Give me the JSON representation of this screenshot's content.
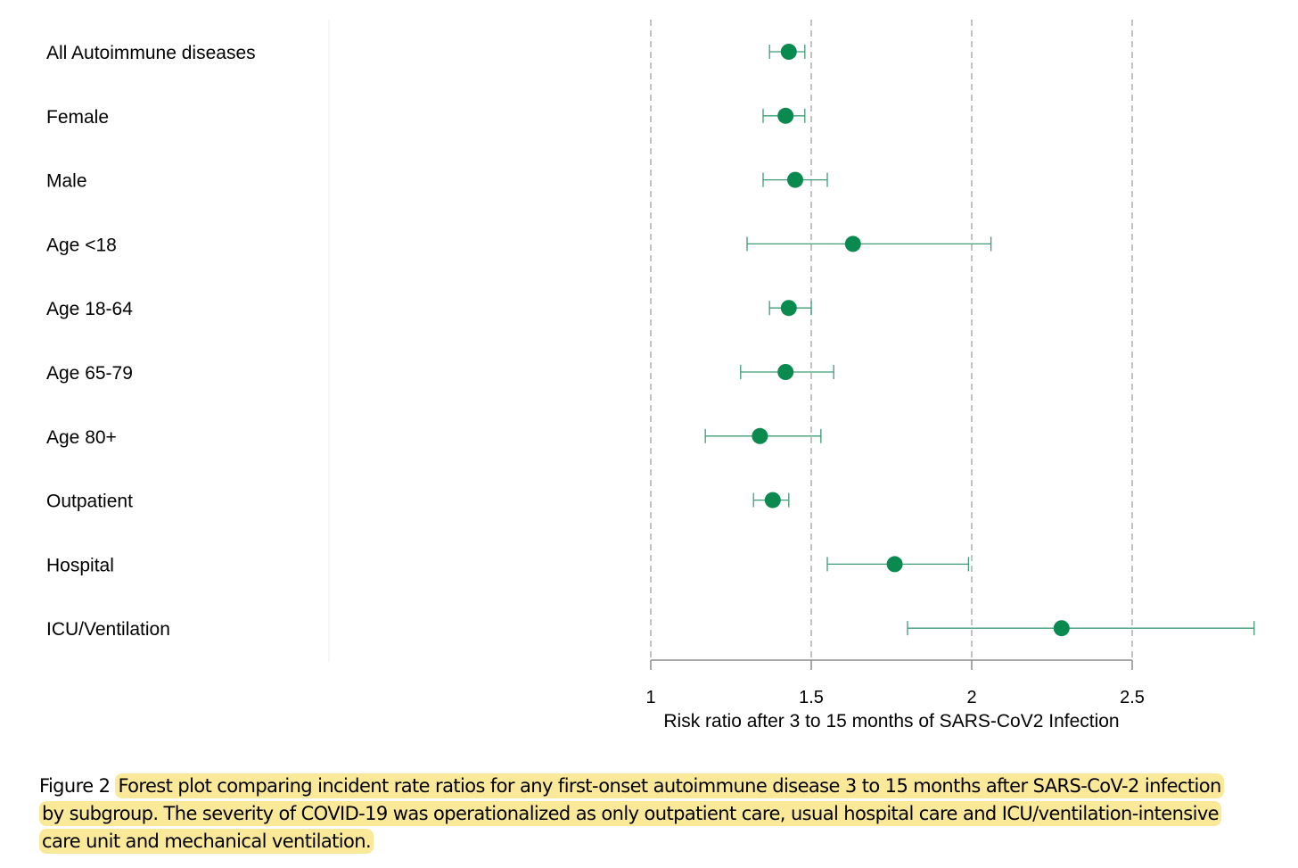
{
  "chart_data": {
    "type": "forest",
    "xlabel": "Risk ratio after 3 to 15 months of SARS-CoV2 Infection",
    "xlim": [
      1,
      2.5
    ],
    "xticks": [
      1,
      1.5,
      2,
      2.5
    ],
    "tick_labels": [
      "1",
      "1.5",
      "2",
      "2.5"
    ],
    "grid": "vertical dashed at ticks",
    "rows": [
      {
        "label": "All Autoimmune diseases",
        "estimate": 1.43,
        "lower": 1.37,
        "upper": 1.48
      },
      {
        "label": "Female",
        "estimate": 1.42,
        "lower": 1.35,
        "upper": 1.48
      },
      {
        "label": "Male",
        "estimate": 1.45,
        "lower": 1.35,
        "upper": 1.55
      },
      {
        "label": "Age <18",
        "estimate": 1.63,
        "lower": 1.3,
        "upper": 2.06
      },
      {
        "label": "Age 18-64",
        "estimate": 1.43,
        "lower": 1.37,
        "upper": 1.5
      },
      {
        "label": "Age 65-79",
        "estimate": 1.42,
        "lower": 1.28,
        "upper": 1.57
      },
      {
        "label": "Age 80+",
        "estimate": 1.34,
        "lower": 1.17,
        "upper": 1.53
      },
      {
        "label": "Outpatient",
        "estimate": 1.38,
        "lower": 1.32,
        "upper": 1.43
      },
      {
        "label": "Hospital",
        "estimate": 1.76,
        "lower": 1.55,
        "upper": 1.99
      },
      {
        "label": "ICU/Ventilation",
        "estimate": 2.28,
        "lower": 1.8,
        "upper": 2.88
      }
    ]
  },
  "caption": {
    "prefix": "Figure 2",
    "text": "Forest plot comparing incident rate ratios for any first-onset autoimmune disease 3 to 15 months after SARS-CoV-2 infection by subgroup. The severity of COVID-19 was operationalized as only outpatient care, usual hospital care and ICU/ventilation-intensive care unit and mechanical ventilation."
  },
  "colors": {
    "marker": "#0b8a50",
    "whisker": "#3f9c76",
    "grid": "#a8a8a8",
    "axis": "#8a8a8a",
    "highlight": "#fbe99a"
  }
}
